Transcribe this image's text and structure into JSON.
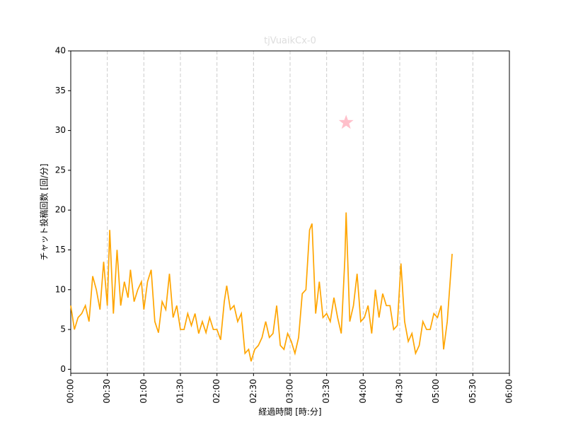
{
  "chart_data": {
    "type": "line",
    "title": "tjVuaikCx-0",
    "xlabel": "経過時間 [時:分]",
    "ylabel": "チャット投稿回数 [回/分]",
    "x": [
      0,
      3,
      6,
      9,
      12,
      15,
      18,
      21,
      24,
      27,
      30,
      32,
      35,
      38,
      41,
      44,
      47,
      49,
      52,
      55,
      58,
      60,
      63,
      66,
      69,
      72,
      75,
      78,
      81,
      84,
      87,
      90,
      93,
      96,
      99,
      102,
      105,
      108,
      111,
      114,
      117,
      120,
      123,
      126,
      128,
      131,
      134,
      137,
      140,
      143,
      146,
      148,
      151,
      154,
      157,
      160,
      163,
      166,
      169,
      172,
      175,
      178,
      181,
      184,
      187,
      190,
      193,
      196,
      198,
      201,
      204,
      207,
      210,
      213,
      216,
      219,
      222,
      225,
      226,
      229,
      232,
      235,
      238,
      241,
      244,
      247,
      250,
      253,
      256,
      259,
      262,
      265,
      268,
      271,
      274,
      277,
      280,
      283,
      286,
      289,
      292,
      295,
      298,
      301,
      304,
      306,
      309,
      313
    ],
    "series": [
      {
        "name": "chat",
        "color": "#ffa500",
        "values": [
          8,
          5,
          6.5,
          7,
          8,
          6,
          11.7,
          10,
          7.5,
          13.5,
          8,
          17.5,
          7,
          15,
          8,
          11,
          9,
          12.5,
          8.5,
          10,
          11,
          7.5,
          11,
          12.5,
          6,
          4.6,
          8.5,
          7.5,
          12,
          6.5,
          8,
          5,
          5,
          7,
          5.5,
          7,
          4.5,
          6,
          4.6,
          6.5,
          5,
          5,
          3.7,
          8.5,
          10.5,
          7.5,
          8,
          6,
          7,
          2,
          2.5,
          1,
          2.5,
          3,
          4,
          6,
          4,
          4.5,
          8,
          3,
          2.5,
          4.5,
          3.5,
          2,
          4,
          9.5,
          10,
          17.5,
          18.3,
          7,
          11,
          6.5,
          7,
          6,
          9,
          6.5,
          4.5,
          14,
          19.7,
          6,
          8,
          12,
          6,
          6.5,
          8,
          4.5,
          10,
          6.5,
          9.5,
          8,
          8,
          5,
          5.5,
          13.3,
          6,
          3.5,
          4.5,
          2,
          3,
          6,
          5,
          5,
          7,
          6.5,
          8,
          2.5,
          6,
          14.5
        ]
      }
    ],
    "marker": {
      "x": 226,
      "y": 31,
      "color": "pink"
    },
    "xlim": [
      0,
      360
    ],
    "xticks": [
      {
        "value": 0,
        "label": "00:00"
      },
      {
        "value": 30,
        "label": "00:30"
      },
      {
        "value": 60,
        "label": "01:00"
      },
      {
        "value": 90,
        "label": "01:30"
      },
      {
        "value": 120,
        "label": "02:00"
      },
      {
        "value": 150,
        "label": "02:30"
      },
      {
        "value": 180,
        "label": "03:00"
      },
      {
        "value": 210,
        "label": "03:30"
      },
      {
        "value": 240,
        "label": "04:00"
      },
      {
        "value": 270,
        "label": "04:30"
      },
      {
        "value": 300,
        "label": "05:00"
      },
      {
        "value": 330,
        "label": "05:30"
      },
      {
        "value": 360,
        "label": "06:00"
      }
    ],
    "ylim": [
      -0.5,
      40
    ],
    "yticks": [
      0,
      5,
      10,
      15,
      20,
      25,
      30,
      35,
      40
    ],
    "grid": true
  }
}
